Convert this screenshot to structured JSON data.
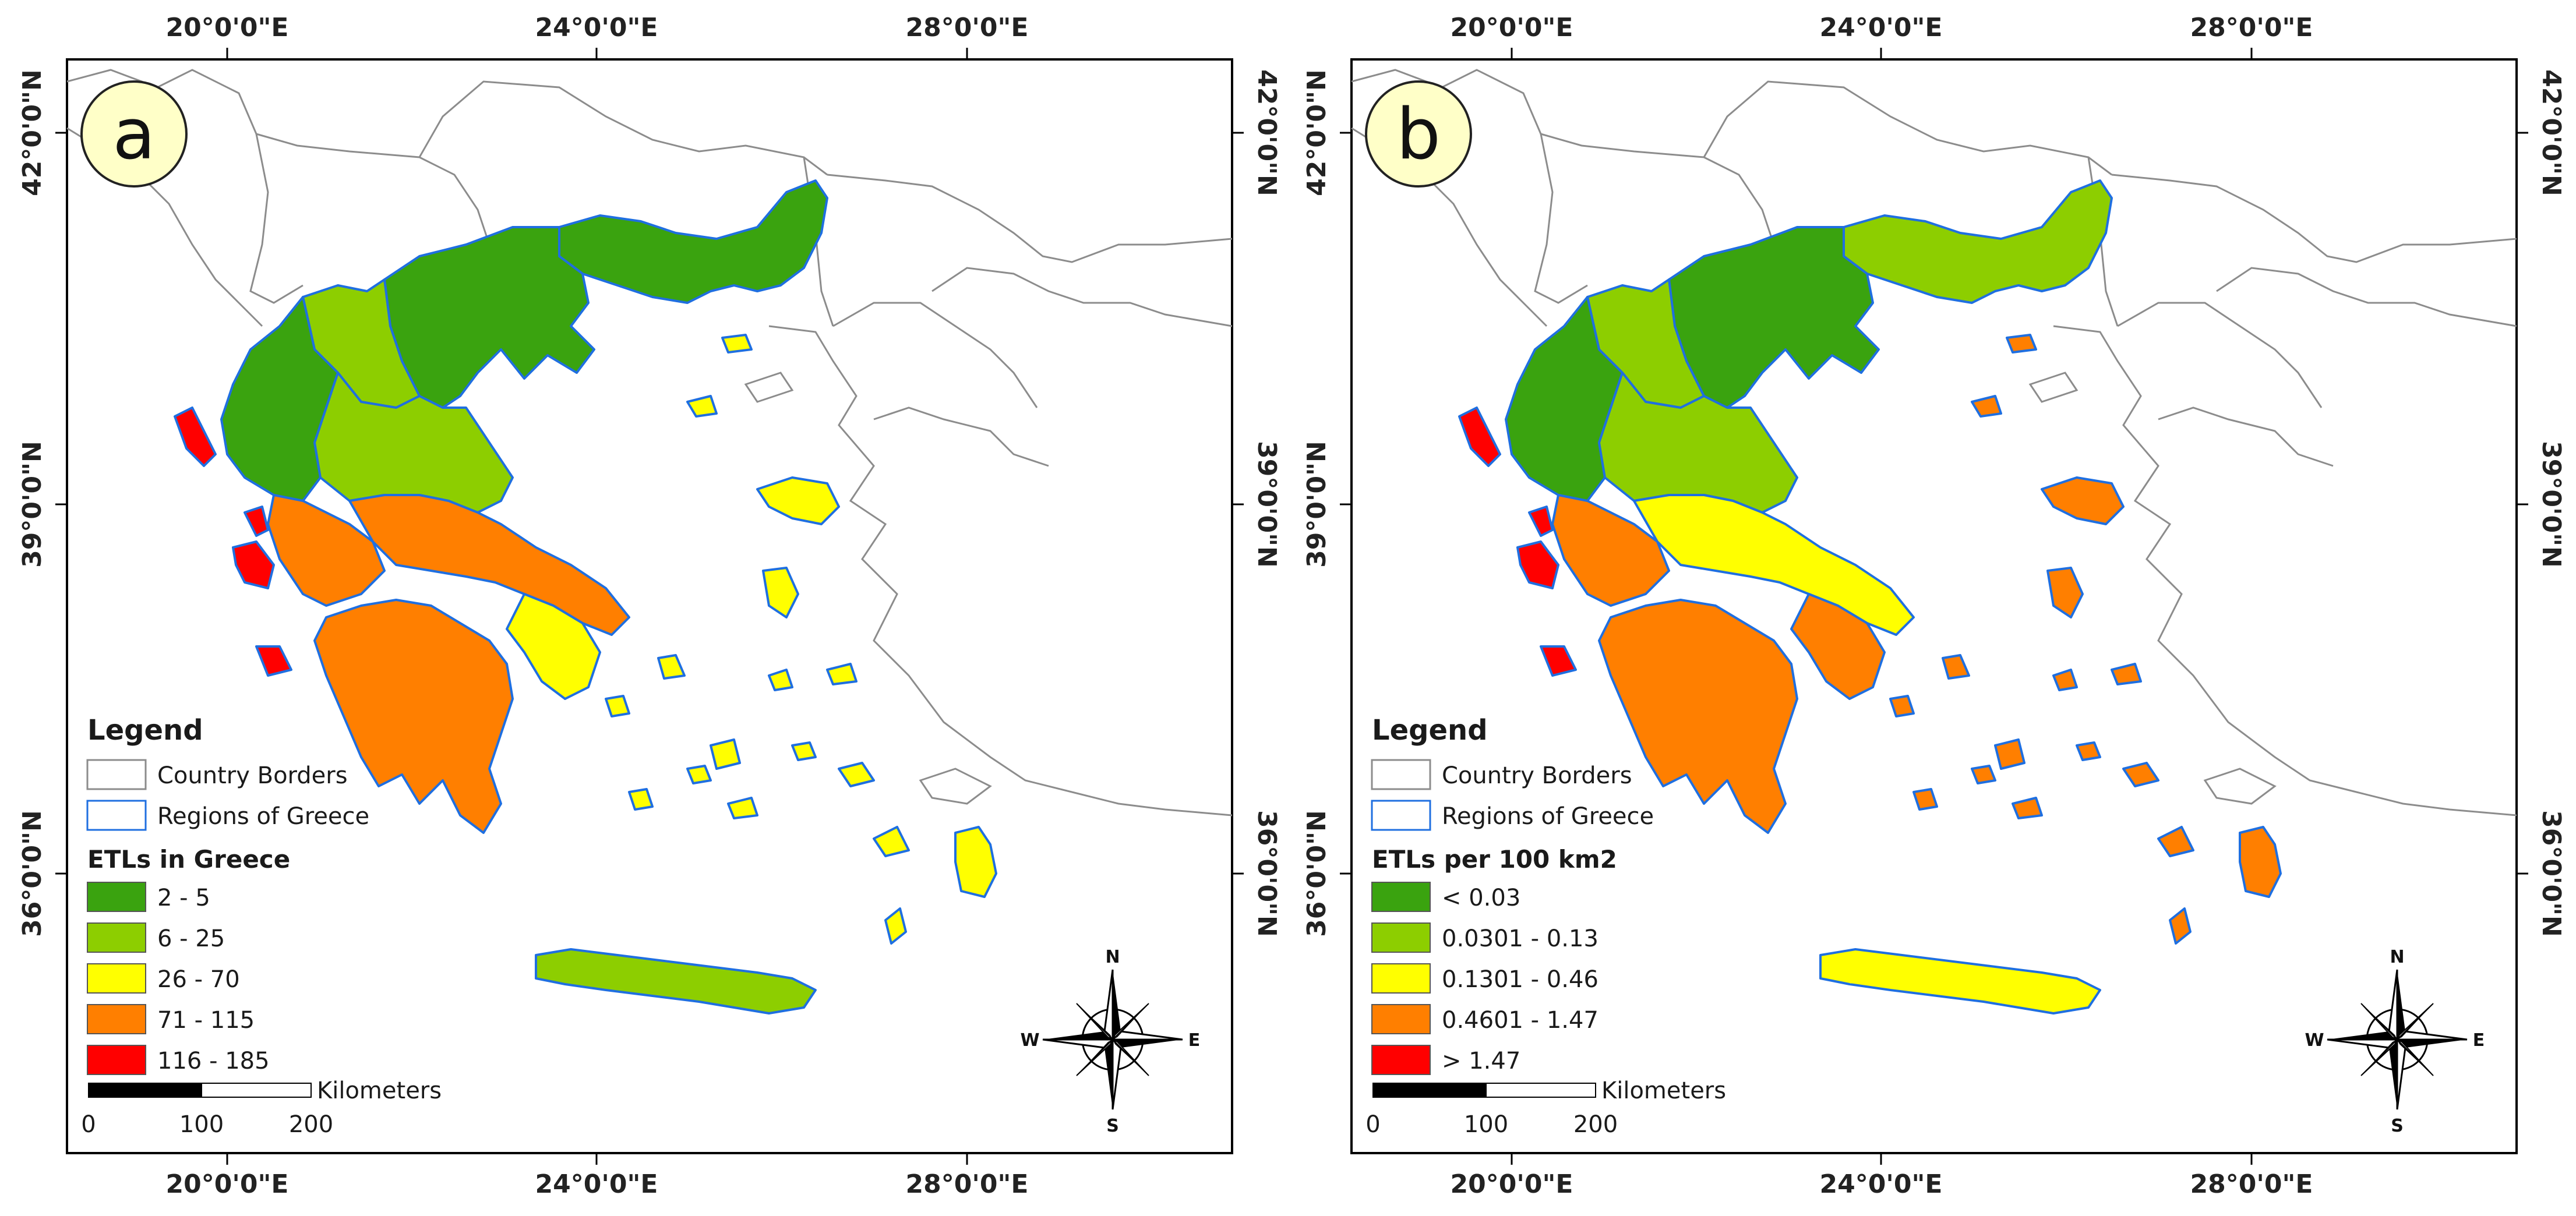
{
  "panels": [
    {
      "label": "a",
      "legend": {
        "title": "Legend",
        "border_label": "Country Borders",
        "regions_label": "Regions of Greece",
        "subtitle": "ETLs in Greece",
        "classes": [
          {
            "label": "2 - 5",
            "color": "#3aa30f"
          },
          {
            "label": "6 - 25",
            "color": "#8dce00"
          },
          {
            "label": "26 - 70",
            "color": "#ffff00"
          },
          {
            "label": "71 - 115",
            "color": "#ff7f00"
          },
          {
            "label": "116 - 185",
            "color": "#ff0000"
          }
        ]
      },
      "scale": {
        "unit": "Kilometers",
        "ticks": [
          "0",
          "100",
          "200"
        ]
      },
      "lon_labels": [
        "20°0'0\"E",
        "24°0'0\"E",
        "28°0'0\"E"
      ],
      "lat_labels": [
        "42°0'0\"N",
        "39°0'0\"N",
        "36°0'0\"N"
      ],
      "compass": {
        "n": "N",
        "s": "S",
        "e": "E",
        "w": "W"
      }
    },
    {
      "label": "b",
      "legend": {
        "title": "Legend",
        "border_label": "Country Borders",
        "regions_label": "Regions of Greece",
        "subtitle": "ETLs per 100 km2",
        "classes": [
          {
            "label": "< 0.03",
            "color": "#3aa30f"
          },
          {
            "label": "0.0301 - 0.13",
            "color": "#8dce00"
          },
          {
            "label": "0.1301 - 0.46",
            "color": "#ffff00"
          },
          {
            "label": "0.4601 - 1.47",
            "color": "#ff7f00"
          },
          {
            "label": "> 1.47",
            "color": "#ff0000"
          }
        ]
      },
      "scale": {
        "unit": "Kilometers",
        "ticks": [
          "0",
          "100",
          "200"
        ]
      },
      "lon_labels": [
        "20°0'0\"E",
        "24°0'0\"E",
        "28°0'0\"E"
      ],
      "lat_labels": [
        "42°0'0\"N",
        "39°0'0\"N",
        "36°0'0\"N"
      ],
      "compass": {
        "n": "N",
        "s": "S",
        "e": "E",
        "w": "W"
      }
    }
  ],
  "regions": [
    {
      "name": "eastern-macedonia-thrace",
      "a": "#3aa30f",
      "b": "#8dce00"
    },
    {
      "name": "central-macedonia",
      "a": "#3aa30f",
      "b": "#3aa30f"
    },
    {
      "name": "western-macedonia",
      "a": "#8dce00",
      "b": "#8dce00"
    },
    {
      "name": "epirus",
      "a": "#3aa30f",
      "b": "#3aa30f"
    },
    {
      "name": "thessaly",
      "a": "#8dce00",
      "b": "#8dce00"
    },
    {
      "name": "western-greece",
      "a": "#ff7f00",
      "b": "#ff7f00"
    },
    {
      "name": "central-greece",
      "a": "#ff7f00",
      "b": "#ffff00"
    },
    {
      "name": "attica",
      "a": "#ffff00",
      "b": "#ff7f00"
    },
    {
      "name": "peloponnese",
      "a": "#ff7f00",
      "b": "#ff7f00"
    },
    {
      "name": "ionian-islands",
      "a": "#ff0000",
      "b": "#ff0000"
    },
    {
      "name": "north-aegean",
      "a": "#ffff00",
      "b": "#ff7f00"
    },
    {
      "name": "south-aegean",
      "a": "#ffff00",
      "b": "#ff7f00"
    },
    {
      "name": "crete",
      "a": "#8dce00",
      "b": "#ffff00"
    }
  ]
}
